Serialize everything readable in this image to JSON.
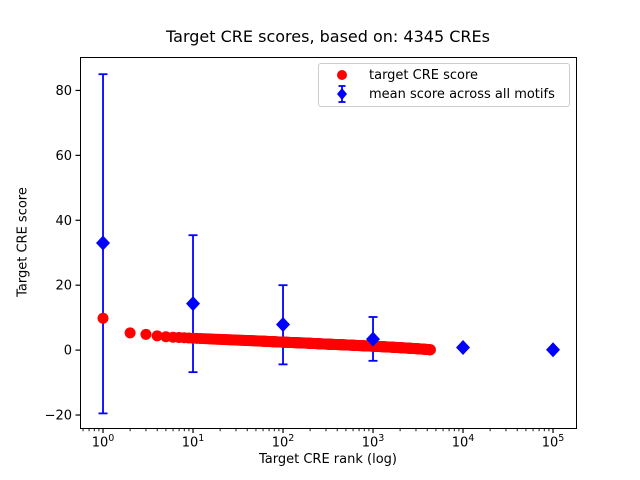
{
  "chart_data": {
    "type": "scatter",
    "title": "Target CRE scores, based on: 4345 CREs",
    "xlabel": "Target CRE rank (log)",
    "ylabel": "Target CRE score",
    "xscale": "log",
    "xlim": [
      0.555,
      180000
    ],
    "ylim": [
      -24,
      90.3
    ],
    "xticks": [
      1,
      10,
      100,
      1000,
      10000,
      100000
    ],
    "xtick_labels": [
      {
        "base": "10",
        "exp": "0"
      },
      {
        "base": "10",
        "exp": "1"
      },
      {
        "base": "10",
        "exp": "2"
      },
      {
        "base": "10",
        "exp": "3"
      },
      {
        "base": "10",
        "exp": "4"
      },
      {
        "base": "10",
        "exp": "5"
      }
    ],
    "yticks": [
      -20,
      0,
      20,
      40,
      60,
      80
    ],
    "ytick_labels": [
      "−20",
      "0",
      "20",
      "40",
      "60",
      "80"
    ],
    "grid": false,
    "legend_position": "upper right",
    "n_cres": 4345,
    "colors": {
      "target_series": "#ff0000",
      "mean_series": "#0000ff",
      "axis": "#000000",
      "legend_border": "#cccccc",
      "background": "#ffffff"
    },
    "series": [
      {
        "name": "target CRE score",
        "color": "#ff0000",
        "marker": "circle",
        "n_points": 4345,
        "points_sampled": [
          [
            1,
            9.8
          ],
          [
            2,
            5.3
          ],
          [
            3,
            4.85
          ],
          [
            4,
            4.4
          ],
          [
            5,
            4.1
          ],
          [
            6,
            3.95
          ],
          [
            8,
            3.8
          ],
          [
            10,
            3.65
          ],
          [
            15,
            3.45
          ],
          [
            20,
            3.3
          ],
          [
            30,
            3.1
          ],
          [
            50,
            2.85
          ],
          [
            70,
            2.65
          ],
          [
            100,
            2.45
          ],
          [
            150,
            2.25
          ],
          [
            200,
            2.1
          ],
          [
            300,
            1.85
          ],
          [
            500,
            1.6
          ],
          [
            700,
            1.4
          ],
          [
            1000,
            1.2
          ],
          [
            1500,
            0.95
          ],
          [
            2000,
            0.75
          ],
          [
            3000,
            0.45
          ],
          [
            4000,
            0.2
          ],
          [
            4345,
            0.1
          ]
        ]
      },
      {
        "name": "mean score across all motifs",
        "color": "#0000ff",
        "marker": "diamond",
        "points": [
          {
            "x": 1,
            "y": 33.0,
            "err_low": -19.5,
            "err_high": 85.0
          },
          {
            "x": 10,
            "y": 14.3,
            "err_low": -6.8,
            "err_high": 35.4
          },
          {
            "x": 100,
            "y": 7.9,
            "err_low": -4.4,
            "err_high": 20.0
          },
          {
            "x": 1000,
            "y": 3.4,
            "err_low": -3.3,
            "err_high": 10.2
          },
          {
            "x": 10000,
            "y": 0.8,
            "err_low": 0.8,
            "err_high": 0.8
          },
          {
            "x": 100000,
            "y": 0.1,
            "err_low": 0.1,
            "err_high": 0.1
          }
        ]
      }
    ]
  }
}
